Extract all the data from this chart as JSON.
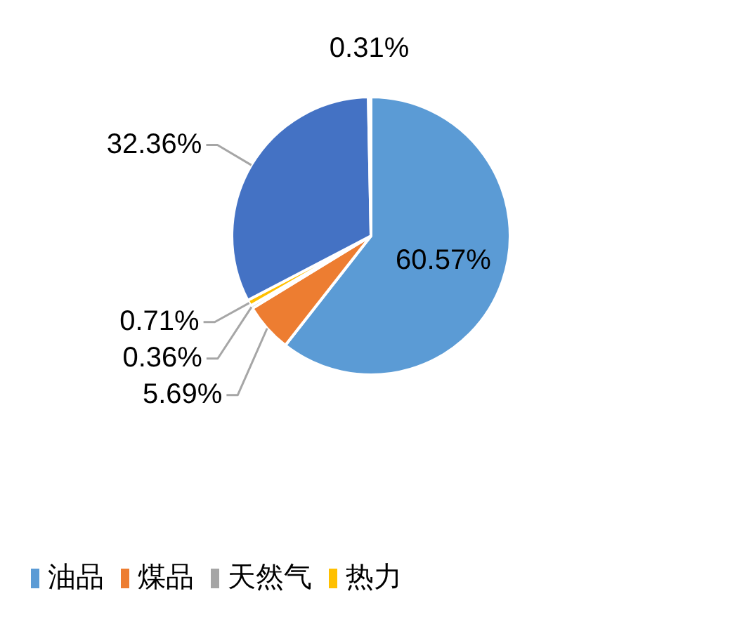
{
  "chart_data": {
    "type": "pie",
    "categories": [
      "油品",
      "煤品",
      "天然气",
      "热力",
      null,
      null
    ],
    "values": [
      60.57,
      5.69,
      0.36,
      0.71,
      32.36,
      0.31
    ],
    "colors": [
      "#5b9bd5",
      "#ed7d31",
      "#a5a5a5",
      "#ffc000",
      "#4472c4",
      "#f2f2f2"
    ],
    "value_labels": [
      "60.57%",
      "5.69%",
      "0.36%",
      "0.71%",
      "32.36%",
      "0.31%"
    ],
    "legend": "bottom left"
  }
}
